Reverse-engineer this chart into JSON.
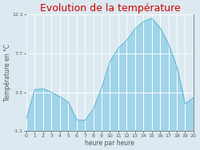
{
  "title": "Evolution de la température",
  "xlabel": "heure par heure",
  "ylabel": "Température en °C",
  "background_color": "#dce9f0",
  "plot_bg_color": "#dce9f0",
  "fill_color": "#a0d4e8",
  "line_color": "#60b8d8",
  "title_color": "#cc0000",
  "ylim": [
    -1.1,
    12.1
  ],
  "xlim": [
    0,
    20
  ],
  "yticks": [
    -1.1,
    3.3,
    7.7,
    12.1
  ],
  "ytick_labels": [
    "-1.1",
    "3.3",
    "7.7",
    "12.1"
  ],
  "hours": [
    0,
    1,
    2,
    3,
    4,
    5,
    6,
    7,
    8,
    9,
    10,
    11,
    12,
    13,
    14,
    15,
    16,
    17,
    18,
    19,
    20
  ],
  "temps": [
    0.3,
    3.6,
    3.7,
    3.3,
    2.8,
    2.2,
    0.2,
    0.1,
    1.4,
    3.8,
    6.8,
    8.3,
    9.2,
    10.5,
    11.3,
    11.7,
    10.6,
    8.8,
    6.2,
    2.0,
    2.7
  ],
  "xtick_labels": [
    "0",
    "1",
    "2",
    "3",
    "4",
    "5",
    "6",
    "7",
    "8",
    "9",
    "10",
    "11",
    "12",
    "13",
    "14",
    "15",
    "16",
    "17",
    "18",
    "19",
    "20"
  ],
  "grid_color": "#ffffff",
  "axis_color": "#888888",
  "tick_color": "#555555",
  "label_fontsize": 5.5,
  "title_fontsize": 9,
  "tick_fontsize": 4.5
}
